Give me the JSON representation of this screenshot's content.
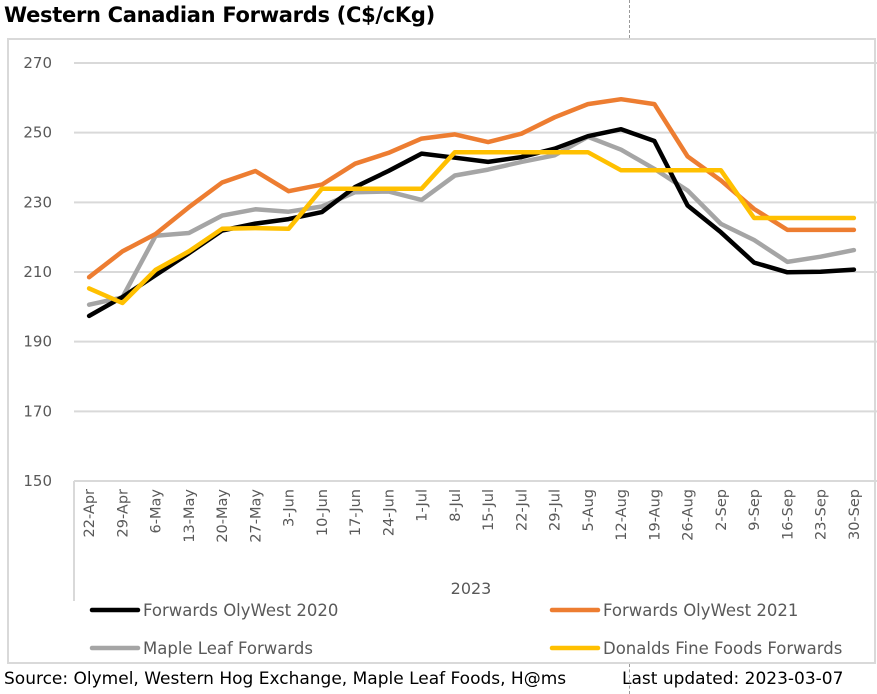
{
  "title": "Western Canadian Forwards (C$/cKg)",
  "footer": {
    "source": "Source: Olymel, Western Hog Exchange, Maple Leaf Foods, H@ms",
    "last_updated": "Last updated:  2023-03-07"
  },
  "chart_data": {
    "type": "line",
    "title": "Western Canadian Forwards (C$/cKg)",
    "xlabel": "2023",
    "ylabel": "",
    "ylim": [
      150,
      270
    ],
    "yticks": [
      150,
      170,
      190,
      210,
      230,
      250,
      270
    ],
    "grid": true,
    "legend_position": "bottom",
    "categories": [
      "22-Apr",
      "29-Apr",
      "6-May",
      "13-May",
      "20-May",
      "27-May",
      "3-Jun",
      "10-Jun",
      "17-Jun",
      "24-Jun",
      "1-Jul",
      "8-Jul",
      "15-Jul",
      "22-Jul",
      "29-Jul",
      "5-Aug",
      "12-Aug",
      "19-Aug",
      "26-Aug",
      "2-Sep",
      "9-Sep",
      "16-Sep",
      "23-Sep",
      "30-Sep"
    ],
    "series": [
      {
        "name": "Forwards OlyWest 2020",
        "color": "#000000",
        "values": [
          197.4,
          202.8,
          209.1,
          215.4,
          221.9,
          223.9,
          225.2,
          227.2,
          234.4,
          239.0,
          244.0,
          242.8,
          241.6,
          243.0,
          245.4,
          249.0,
          251.0,
          247.6,
          229.1,
          221.4,
          212.7,
          209.9,
          210.1,
          210.7
        ]
      },
      {
        "name": "Forwards OlyWest 2021",
        "color": "#ED7D31",
        "values": [
          208.5,
          215.9,
          220.9,
          228.6,
          235.7,
          239.0,
          233.2,
          235.1,
          241.1,
          244.2,
          248.3,
          249.5,
          247.3,
          249.7,
          254.4,
          258.2,
          259.6,
          258.2,
          243.2,
          236.3,
          228.1,
          222.1,
          222.1,
          222.1
        ]
      },
      {
        "name": "Maple Leaf Forwards",
        "color": "#A5A5A5",
        "values": [
          200.6,
          202.7,
          220.4,
          221.2,
          226.2,
          228.0,
          227.3,
          228.8,
          232.9,
          233.1,
          230.7,
          237.7,
          239.4,
          241.6,
          243.5,
          248.8,
          245.1,
          239.6,
          233.4,
          223.8,
          219.2,
          212.9,
          214.4,
          216.3
        ]
      },
      {
        "name": "Donalds Fine Foods Forwards",
        "color": "#FFC000",
        "values": [
          205.3,
          201.1,
          210.6,
          215.9,
          222.4,
          222.6,
          222.4,
          233.9,
          233.9,
          233.9,
          233.9,
          244.4,
          244.4,
          244.4,
          244.4,
          244.4,
          239.2,
          239.2,
          239.2,
          239.2,
          225.5,
          225.5,
          225.5,
          225.5
        ]
      }
    ]
  }
}
